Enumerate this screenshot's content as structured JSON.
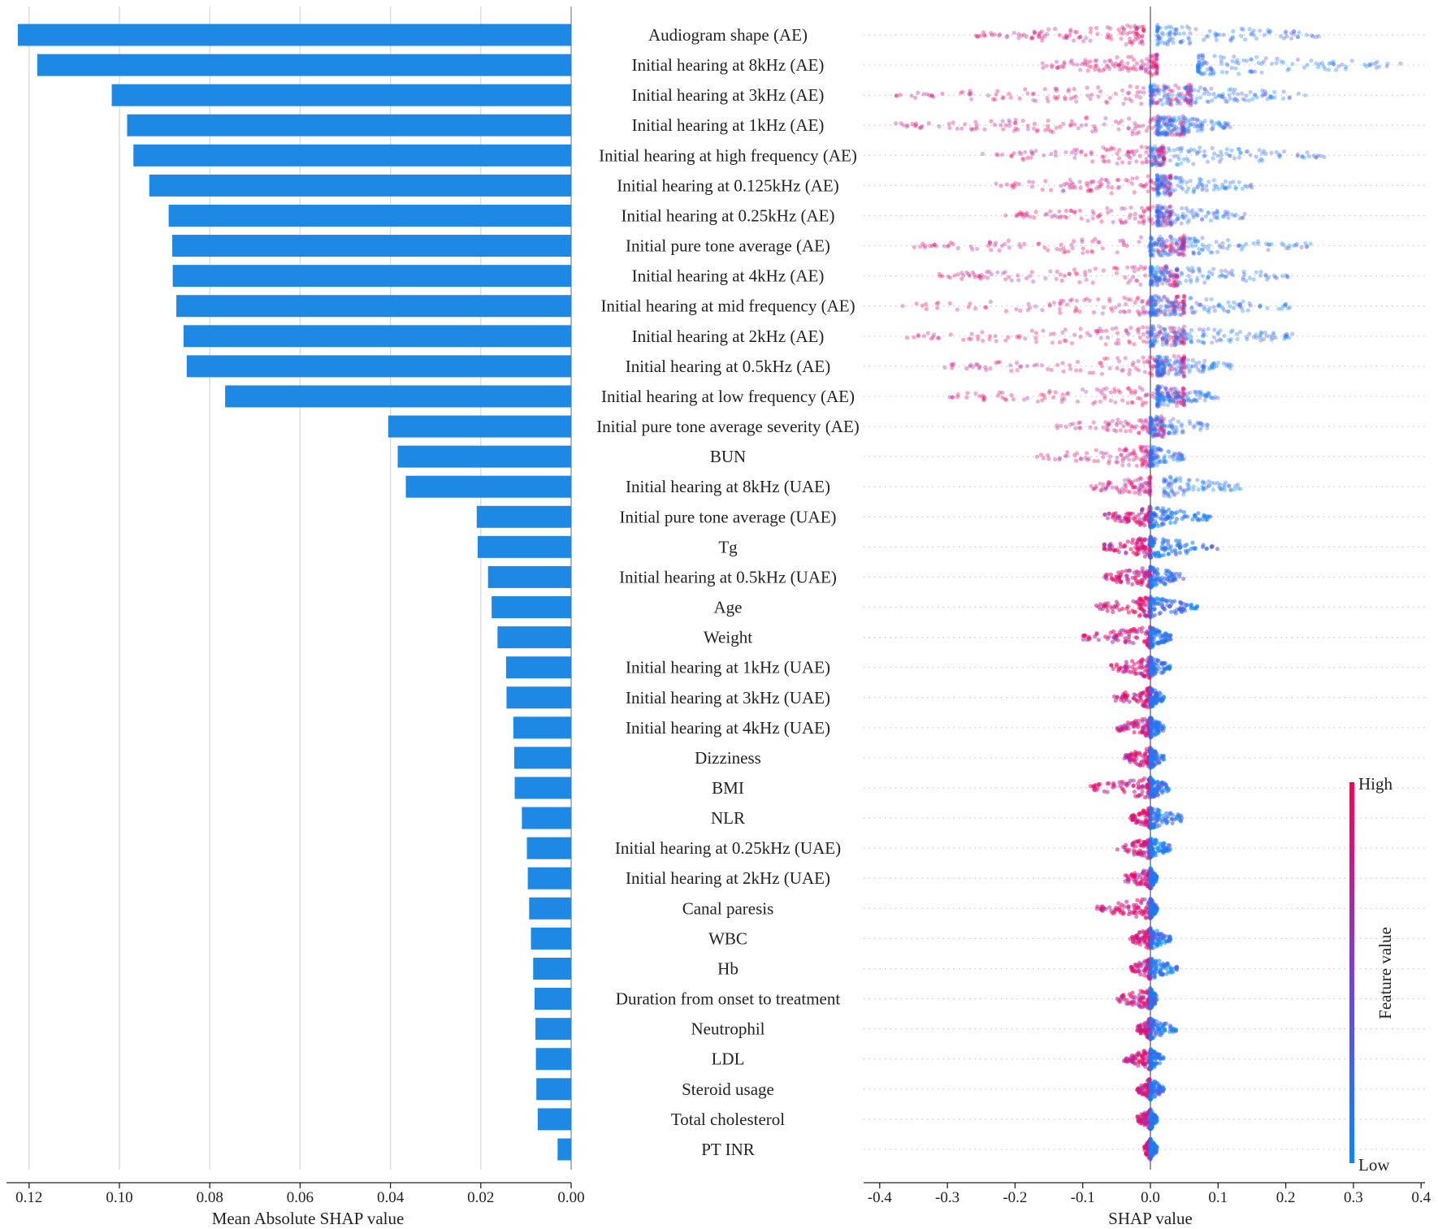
{
  "chart_data": [
    {
      "type": "bar",
      "orientation": "horizontal",
      "xlabel": "Mean Absolute SHAP value",
      "xlim": [
        0.125,
        0
      ],
      "xticks": [
        "0.12",
        "0.10",
        "0.08",
        "0.06",
        "0.04",
        "0.02",
        "0.00"
      ],
      "grid": true,
      "categories": [
        "Audiogram shape (AE)",
        "Initial hearing at 8kHz (AE)",
        "Initial hearing at 3kHz (AE)",
        "Initial hearing at 1kHz (AE)",
        "Initial hearing at high frequency (AE)",
        "Initial hearing at 0.125kHz (AE)",
        "Initial hearing at 0.25kHz (AE)",
        "Initial pure tone average (AE)",
        "Initial hearing at 4kHz (AE)",
        "Initial hearing at mid frequency (AE)",
        "Initial hearing at 2kHz (AE)",
        "Initial hearing at 0.5kHz (AE)",
        "Initial hearing at low frequency (AE)",
        "Initial pure tone average severity (AE)",
        "BUN",
        "Initial hearing at 8kHz (UAE)",
        "Initial pure tone average (UAE)",
        "Tg",
        "Initial hearing at 0.5kHz (UAE)",
        "Age",
        "Weight",
        "Initial hearing at 1kHz (UAE)",
        "Initial hearing at 3kHz (UAE)",
        "Initial hearing at 4kHz (UAE)",
        "Dizziness",
        "BMI",
        "NLR",
        "Initial hearing at 0.25kHz (UAE)",
        "Initial hearing at 2kHz (UAE)",
        "Canal paresis",
        "WBC",
        "Hb",
        "Duration from onset to treatment",
        "Neutrophil",
        "LDL",
        "Steroid usage",
        "Total cholesterol",
        "PT INR"
      ],
      "values": [
        0.1225,
        0.1182,
        0.1017,
        0.0983,
        0.0969,
        0.0934,
        0.0891,
        0.0883,
        0.0882,
        0.0874,
        0.0858,
        0.0851,
        0.0766,
        0.0405,
        0.0384,
        0.0366,
        0.0209,
        0.0207,
        0.0184,
        0.0176,
        0.0163,
        0.0144,
        0.0143,
        0.0128,
        0.0126,
        0.0125,
        0.0109,
        0.0098,
        0.0096,
        0.0093,
        0.0089,
        0.0084,
        0.0081,
        0.0079,
        0.0078,
        0.0077,
        0.0074,
        0.003
      ]
    },
    {
      "type": "scatter",
      "subtype": "beeswarm",
      "xlabel": "SHAP value",
      "xlim": [
        -0.41,
        0.405
      ],
      "xticks": [
        "-0.4",
        "-0.3",
        "-0.2",
        "-0.1",
        "0.0",
        "0.1",
        "0.2",
        "0.3",
        "0.4"
      ],
      "colorbar": {
        "label": "Feature value",
        "high": "High",
        "low": "Low",
        "high_color": "#ff0052",
        "low_color": "#008bfb"
      },
      "feature_ranges": [
        {
          "feature": "Audiogram shape (AE)",
          "high_range": [
            -0.26,
            -0.01
          ],
          "low_range": [
            0.01,
            0.25
          ]
        },
        {
          "feature": "Initial hearing at 8kHz (AE)",
          "high_range": [
            -0.17,
            0.01
          ],
          "low_range": [
            0.07,
            0.37
          ]
        },
        {
          "feature": "Initial hearing at 3kHz (AE)",
          "high_range": [
            -0.38,
            0.06
          ],
          "low_range": [
            0.0,
            0.23
          ]
        },
        {
          "feature": "Initial hearing at 1kHz (AE)",
          "high_range": [
            -0.38,
            0.05
          ],
          "low_range": [
            0.01,
            0.12
          ]
        },
        {
          "feature": "Initial hearing at high frequency (AE)",
          "high_range": [
            -0.25,
            0.02
          ],
          "low_range": [
            0.0,
            0.26
          ]
        },
        {
          "feature": "Initial hearing at 0.125kHz (AE)",
          "high_range": [
            -0.23,
            0.03
          ],
          "low_range": [
            0.01,
            0.15
          ]
        },
        {
          "feature": "Initial hearing at 0.25kHz (AE)",
          "high_range": [
            -0.22,
            0.03
          ],
          "low_range": [
            0.01,
            0.14
          ]
        },
        {
          "feature": "Initial pure tone average (AE)",
          "high_range": [
            -0.35,
            0.05
          ],
          "low_range": [
            0.0,
            0.24
          ]
        },
        {
          "feature": "Initial hearing at 4kHz (AE)",
          "high_range": [
            -0.32,
            0.04
          ],
          "low_range": [
            0.0,
            0.21
          ]
        },
        {
          "feature": "Initial hearing at mid frequency (AE)",
          "high_range": [
            -0.37,
            0.05
          ],
          "low_range": [
            0.0,
            0.21
          ]
        },
        {
          "feature": "Initial hearing at 2kHz (AE)",
          "high_range": [
            -0.36,
            0.05
          ],
          "low_range": [
            0.0,
            0.21
          ]
        },
        {
          "feature": "Initial hearing at 0.5kHz (AE)",
          "high_range": [
            -0.31,
            0.05
          ],
          "low_range": [
            0.01,
            0.12
          ]
        },
        {
          "feature": "Initial hearing at low frequency (AE)",
          "high_range": [
            -0.31,
            0.05
          ],
          "low_range": [
            0.01,
            0.1
          ]
        },
        {
          "feature": "Initial pure tone average severity (AE)",
          "high_range": [
            -0.14,
            0.02
          ],
          "low_range": [
            0.0,
            0.09
          ]
        },
        {
          "feature": "BUN",
          "high_range": [
            -0.17,
            0.0
          ],
          "low_range": [
            0.0,
            0.05
          ]
        },
        {
          "feature": "Initial hearing at 8kHz (UAE)",
          "high_range": [
            -0.09,
            0.0
          ],
          "low_range": [
            0.02,
            0.14
          ]
        },
        {
          "feature": "Initial pure tone average (UAE)",
          "high_range": [
            -0.07,
            0.0
          ],
          "low_range": [
            0.0,
            0.09
          ]
        },
        {
          "feature": "Tg",
          "high_range": [
            -0.07,
            0.0
          ],
          "low_range": [
            0.0,
            0.1
          ]
        },
        {
          "feature": "Initial hearing at 0.5kHz (UAE)",
          "high_range": [
            -0.07,
            0.0
          ],
          "low_range": [
            0.0,
            0.05
          ]
        },
        {
          "feature": "Age",
          "high_range": [
            -0.08,
            0.0
          ],
          "low_range": [
            0.0,
            0.07
          ]
        },
        {
          "feature": "Weight",
          "high_range": [
            -0.1,
            0.0
          ],
          "low_range": [
            0.0,
            0.03
          ]
        },
        {
          "feature": "Initial hearing at 1kHz (UAE)",
          "high_range": [
            -0.06,
            0.0
          ],
          "low_range": [
            0.0,
            0.03
          ]
        },
        {
          "feature": "Initial hearing at 3kHz (UAE)",
          "high_range": [
            -0.06,
            0.0
          ],
          "low_range": [
            0.0,
            0.02
          ]
        },
        {
          "feature": "Initial hearing at 4kHz (UAE)",
          "high_range": [
            -0.05,
            0.0
          ],
          "low_range": [
            0.0,
            0.02
          ]
        },
        {
          "feature": "Dizziness",
          "high_range": [
            -0.04,
            0.0
          ],
          "low_range": [
            0.0,
            0.02
          ]
        },
        {
          "feature": "BMI",
          "high_range": [
            -0.09,
            0.0
          ],
          "low_range": [
            0.0,
            0.03
          ]
        },
        {
          "feature": "NLR",
          "high_range": [
            -0.03,
            0.0
          ],
          "low_range": [
            0.0,
            0.05
          ]
        },
        {
          "feature": "Initial hearing at 0.25kHz (UAE)",
          "high_range": [
            -0.05,
            0.0
          ],
          "low_range": [
            0.0,
            0.03
          ]
        },
        {
          "feature": "Initial hearing at 2kHz (UAE)",
          "high_range": [
            -0.04,
            0.0
          ],
          "low_range": [
            0.0,
            0.01
          ]
        },
        {
          "feature": "Canal paresis",
          "high_range": [
            -0.08,
            0.0
          ],
          "low_range": [
            0.0,
            0.01
          ]
        },
        {
          "feature": "WBC",
          "high_range": [
            -0.03,
            0.0
          ],
          "low_range": [
            0.0,
            0.03
          ]
        },
        {
          "feature": "Hb",
          "high_range": [
            -0.03,
            0.0
          ],
          "low_range": [
            0.0,
            0.04
          ]
        },
        {
          "feature": "Duration from onset to treatment",
          "high_range": [
            -0.05,
            0.0
          ],
          "low_range": [
            0.0,
            0.01
          ]
        },
        {
          "feature": "Neutrophil",
          "high_range": [
            -0.02,
            0.0
          ],
          "low_range": [
            0.0,
            0.04
          ]
        },
        {
          "feature": "LDL",
          "high_range": [
            -0.04,
            0.0
          ],
          "low_range": [
            0.0,
            0.02
          ]
        },
        {
          "feature": "Steroid usage",
          "high_range": [
            -0.02,
            0.0
          ],
          "low_range": [
            0.0,
            0.02
          ]
        },
        {
          "feature": "Total cholesterol",
          "high_range": [
            -0.02,
            0.0
          ],
          "low_range": [
            0.0,
            0.01
          ]
        },
        {
          "feature": "PT INR",
          "high_range": [
            -0.01,
            0.0
          ],
          "low_range": [
            0.0,
            0.01
          ]
        }
      ]
    }
  ]
}
